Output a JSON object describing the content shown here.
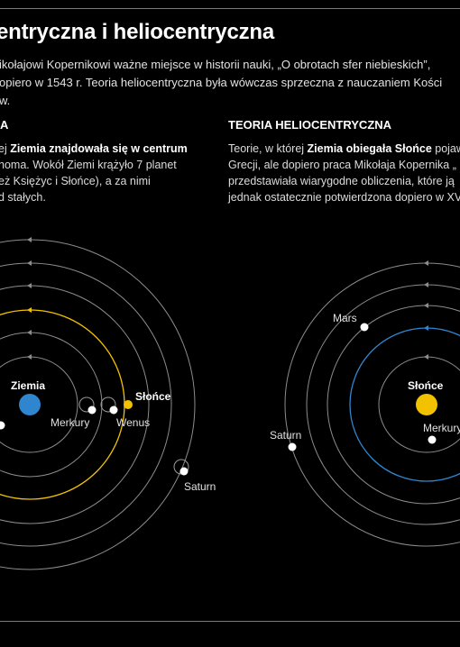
{
  "title": "entryczna i heliocentryczna",
  "lead": [
    "ikołajowi Kopernikowi ważne miejsce w historii nauki, „O obrotach sfer niebieskich”,",
    "opiero w 1543 r. Teoria heliocentryczna była wówczas sprzeczna z nauczaniem Kości",
    "w."
  ],
  "left": {
    "heading": "A",
    "lines": [
      {
        "pre": "ej ",
        "bold": "Ziemia znajdowała się w centrum",
        "post": ""
      },
      {
        "pre": "homa. Wokół Ziemi krążyło 7 planet",
        "bold": "",
        "post": ""
      },
      {
        "pre": "eż Księżyc i Słońce), a za nimi",
        "bold": "",
        "post": ""
      },
      {
        "pre": "d stałych.",
        "bold": "",
        "post": ""
      }
    ],
    "labels": {
      "center": "Ziemia",
      "sun": "Słońce",
      "p1": "Merkury",
      "p2": "Wenus",
      "p3": "Saturn"
    }
  },
  "right": {
    "heading": "TEORIA HELIOCENTRYCZNA",
    "lines": [
      {
        "pre": "Teorie, w której ",
        "bold": "Ziemia obiegała Słońce",
        "post": " pojaw"
      },
      {
        "pre": "Grecji, ale dopiero praca Mikołaja Kopernika „",
        "bold": "",
        "post": ""
      },
      {
        "pre": "przedstawiała wiarygodne obliczenia, które ją",
        "bold": "",
        "post": ""
      },
      {
        "pre": "jednak ostatecznie potwierdzona dopiero w XV",
        "bold": "",
        "post": ""
      }
    ],
    "labels": {
      "center": "Słońce",
      "mars": "Mars",
      "saturn": "Saturn",
      "mercury": "Merkury"
    }
  },
  "colors": {
    "orbit": "#8c8c8c",
    "sun": "#f2c200",
    "earth": "#2f86cf",
    "planet": "#ffffff",
    "rule": "#7a7a7a"
  },
  "icons": [
    "orbit-arrow-icon",
    "epicycle-icon"
  ]
}
